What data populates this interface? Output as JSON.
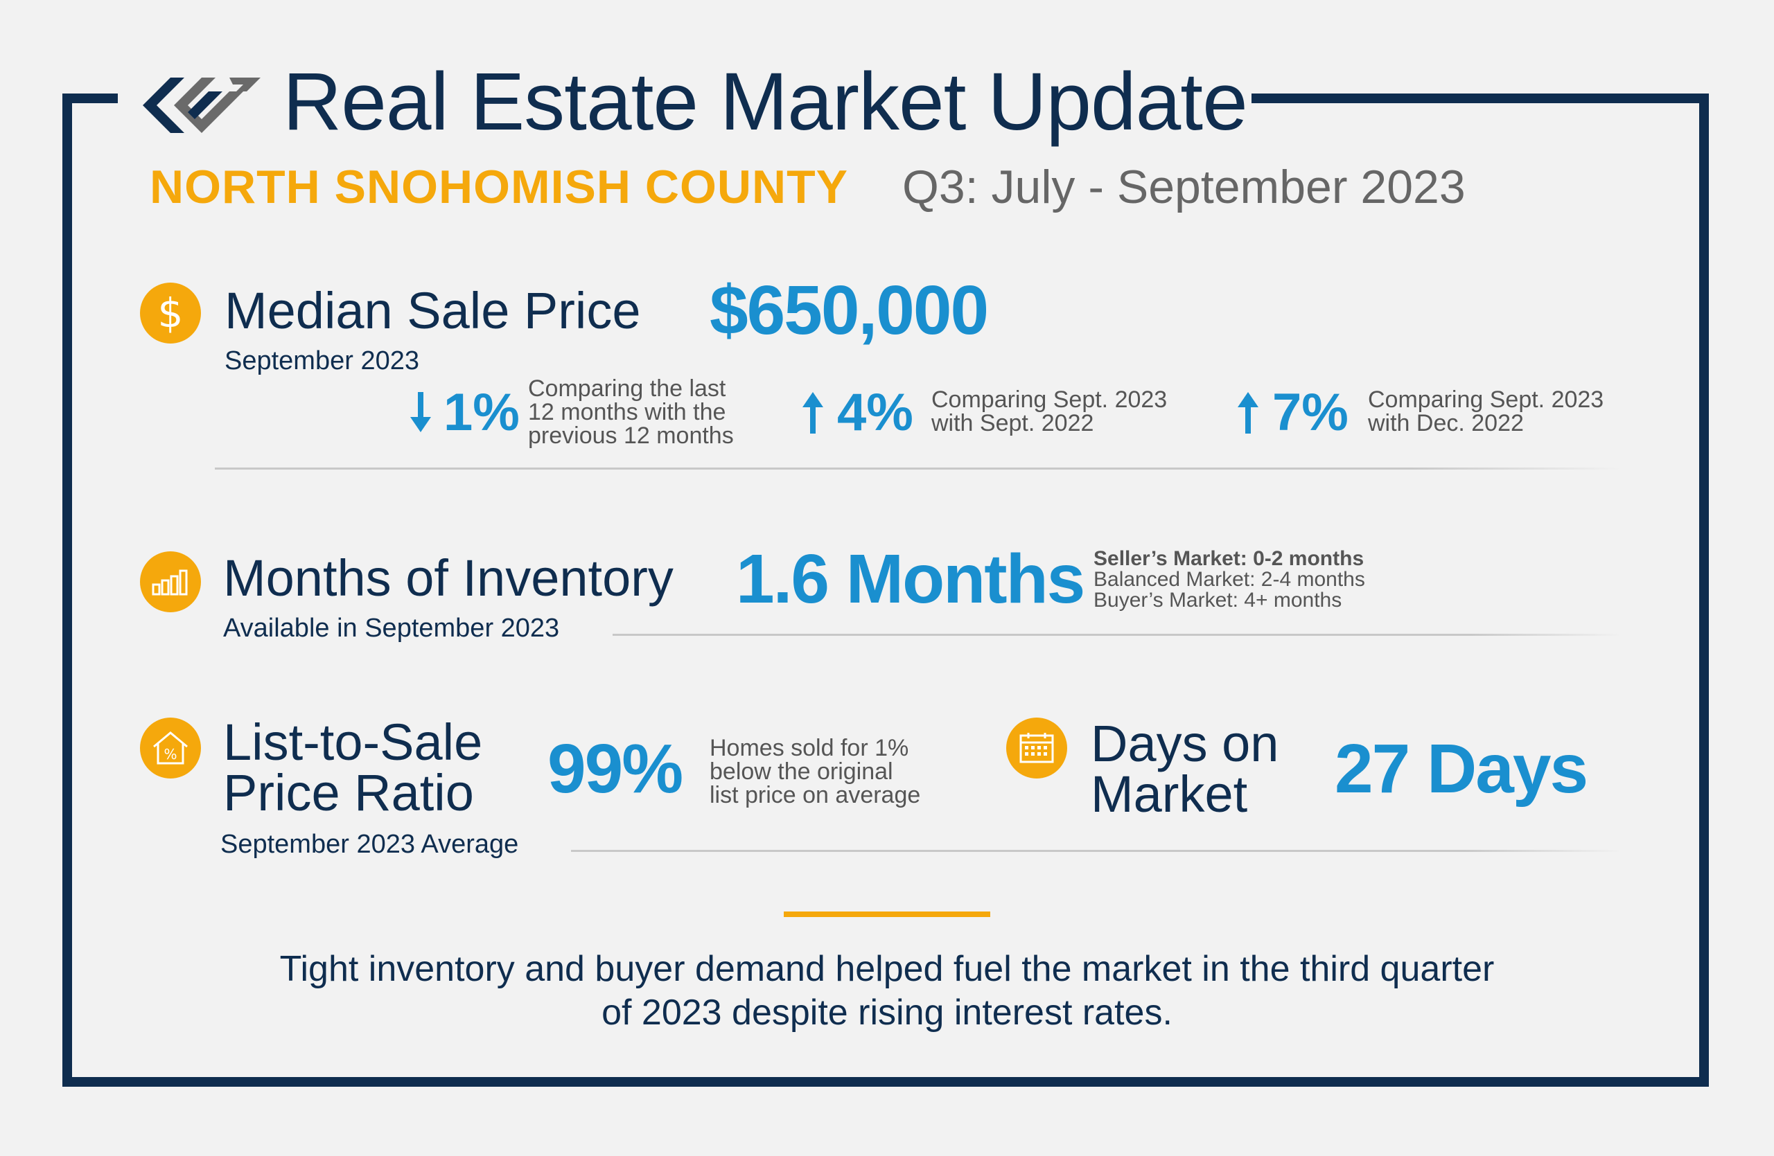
{
  "header": {
    "title": "Real Estate Market Update",
    "region": "NORTH SNOHOMISH COUNTY",
    "period": "Q3: July - September 2023",
    "logo": "windermere-logo"
  },
  "colors": {
    "navy": "#0f2d4f",
    "blue": "#1a8fcf",
    "orange": "#f5a80c",
    "gray_text": "#666666"
  },
  "median_sale_price": {
    "icon": "dollar-icon",
    "label": "Median Sale Price",
    "sublabel": "September 2023",
    "value": "$650,000",
    "stats": [
      {
        "direction": "down",
        "value": "1%",
        "note_lines": [
          "Comparing the last",
          "12 months with the",
          "previous 12 months"
        ]
      },
      {
        "direction": "up",
        "value": "4%",
        "note_lines": [
          "Comparing Sept. 2023",
          "with Sept. 2022"
        ]
      },
      {
        "direction": "up",
        "value": "7%",
        "note_lines": [
          "Comparing Sept. 2023",
          "with Dec. 2022"
        ]
      }
    ]
  },
  "months_of_inventory": {
    "icon": "bar-chart-icon",
    "label": "Months of Inventory",
    "sublabel": "Available in September 2023",
    "value": "1.6 Months",
    "legend": [
      "Seller’s Market: 0-2 months",
      "Balanced Market: 2-4 months",
      "Buyer’s Market: 4+ months"
    ]
  },
  "list_to_sale": {
    "icon": "house-percent-icon",
    "label_lines": [
      "List-to-Sale",
      "Price Ratio"
    ],
    "sublabel": "September 2023 Average",
    "value": "99%",
    "note_lines": [
      "Homes sold for 1%",
      "below the original",
      "list price on average"
    ]
  },
  "days_on_market": {
    "icon": "calendar-icon",
    "label_lines": [
      "Days on",
      "Market"
    ],
    "value": "27 Days"
  },
  "footer": {
    "text_lines": [
      "Tight inventory and buyer demand helped fuel the market in the third quarter",
      "of 2023 despite rising interest rates."
    ]
  }
}
